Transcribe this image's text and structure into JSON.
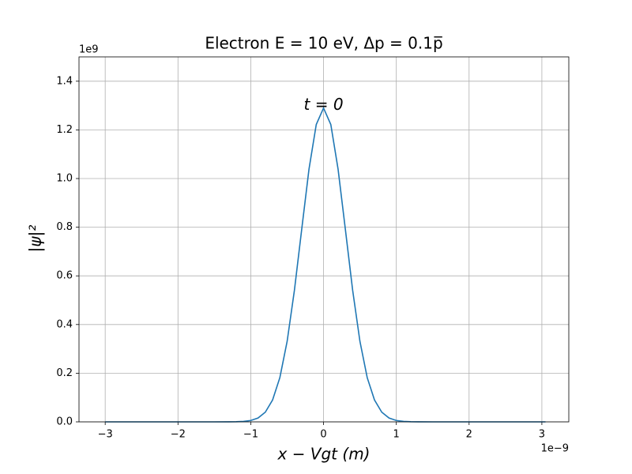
{
  "chart_data": {
    "type": "line",
    "title": "Electron E = 10 eV, Δp = 0.1p̅",
    "xlabel": "x − Vgt (m)",
    "ylabel": "|ψ|²",
    "x_offset_label": "1e−9",
    "y_offset_label": "1e9",
    "annotation": {
      "text": "t = 0",
      "x": 0,
      "y": 1.3
    },
    "xlim": [
      -3.36,
      3.37
    ],
    "ylim": [
      0,
      1.5
    ],
    "xticks": [
      {
        "value": -3,
        "label": "−3"
      },
      {
        "value": -2,
        "label": "−2"
      },
      {
        "value": -1,
        "label": "−1"
      },
      0,
      1,
      2,
      3
    ],
    "yticks": [
      {
        "value": 0,
        "label": "0.0"
      },
      {
        "value": 0.2,
        "label": "0.2"
      },
      {
        "value": 0.4,
        "label": "0.4"
      },
      {
        "value": 0.6,
        "label": "0.6"
      },
      {
        "value": 0.8,
        "label": "0.8"
      },
      {
        "value": 1.0,
        "label": "1.0"
      },
      {
        "value": 1.2,
        "label": "1.2"
      },
      {
        "value": 1.4,
        "label": "1.4"
      }
    ],
    "grid": true,
    "x": [
      -3,
      -2,
      -1.5,
      -1.3,
      -1.2,
      -1.1,
      -1.0,
      -0.9,
      -0.8,
      -0.7,
      -0.6,
      -0.5,
      -0.4,
      -0.3,
      -0.2,
      -0.1,
      0,
      0.1,
      0.2,
      0.3,
      0.4,
      0.5,
      0.6,
      0.7,
      0.8,
      0.9,
      1.0,
      1.1,
      1.2,
      1.3,
      1.5,
      2,
      3.05
    ],
    "series": [
      {
        "color": "#1f77b4",
        "values": [
          0,
          0,
          0,
          0.0001,
          0.0005,
          0.0018,
          0.0056,
          0.0158,
          0.0398,
          0.09,
          0.182,
          0.331,
          0.541,
          0.791,
          1.038,
          1.222,
          1.29,
          1.222,
          1.038,
          0.791,
          0.541,
          0.331,
          0.182,
          0.09,
          0.0398,
          0.0158,
          0.0056,
          0.0018,
          0.0005,
          0.0001,
          0,
          0,
          0
        ]
      }
    ]
  }
}
